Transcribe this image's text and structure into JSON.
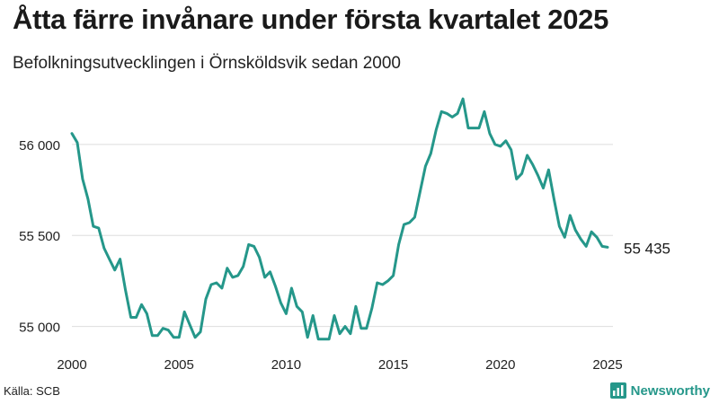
{
  "title": "Åtta färre invånare under första kvartalet 2025",
  "subtitle": "Befolkningsutvecklingen i Örnsköldsvik sedan 2000",
  "source": "Källa: SCB",
  "brand": {
    "name": "Newsworthy",
    "color": "#25978a"
  },
  "chart_data": {
    "type": "line",
    "title": "Åtta färre invånare under första kvartalet 2025",
    "subtitle": "Befolkningsutvecklingen i Örnsköldsvik sedan 2000",
    "xlabel": "",
    "ylabel": "",
    "xlim": [
      2000,
      2025
    ],
    "ylim": [
      54870,
      56300
    ],
    "x_ticks": [
      2000,
      2005,
      2010,
      2015,
      2020,
      2025
    ],
    "x_tick_labels": [
      "2000",
      "2005",
      "2010",
      "2015",
      "2020",
      "2025"
    ],
    "y_ticks": [
      55000,
      55500,
      56000
    ],
    "y_tick_labels": [
      "55 000",
      "55 500",
      "56 000"
    ],
    "grid": "horizontal",
    "legend": "none",
    "line_color": "#25978a",
    "last_value_label": "55 435",
    "series": [
      {
        "x": [
          2000.0,
          2000.25,
          2000.5,
          2000.75,
          2001.0,
          2001.25,
          2001.5,
          2001.75,
          2002.0,
          2002.25,
          2002.5,
          2002.75,
          2003.0,
          2003.25,
          2003.5,
          2003.75,
          2004.0,
          2004.25,
          2004.5,
          2004.75,
          2005.0,
          2005.25,
          2005.5,
          2005.75,
          2006.0,
          2006.25,
          2006.5,
          2006.75,
          2007.0,
          2007.25,
          2007.5,
          2007.75,
          2008.0,
          2008.25,
          2008.5,
          2008.75,
          2009.0,
          2009.25,
          2009.5,
          2009.75,
          2010.0,
          2010.25,
          2010.5,
          2010.75,
          2011.0,
          2011.25,
          2011.5,
          2011.75,
          2012.0,
          2012.25,
          2012.5,
          2012.75,
          2013.0,
          2013.25,
          2013.5,
          2013.75,
          2014.0,
          2014.25,
          2014.5,
          2014.75,
          2015.0,
          2015.25,
          2015.5,
          2015.75,
          2016.0,
          2016.25,
          2016.5,
          2016.75,
          2017.0,
          2017.25,
          2017.5,
          2017.75,
          2018.0,
          2018.25,
          2018.5,
          2018.75,
          2019.0,
          2019.25,
          2019.5,
          2019.75,
          2020.0,
          2020.25,
          2020.5,
          2020.75,
          2021.0,
          2021.25,
          2021.5,
          2021.75,
          2022.0,
          2022.25,
          2022.5,
          2022.75,
          2023.0,
          2023.25,
          2023.5,
          2023.75,
          2024.0,
          2024.25,
          2024.5,
          2024.75,
          2025.0
        ],
        "y": [
          56060,
          56010,
          55810,
          55700,
          55550,
          55540,
          55430,
          55370,
          55310,
          55370,
          55200,
          55050,
          55050,
          55120,
          55070,
          54950,
          54950,
          54990,
          54980,
          54940,
          54940,
          55080,
          55010,
          54940,
          54970,
          55150,
          55230,
          55240,
          55210,
          55320,
          55270,
          55280,
          55330,
          55450,
          55440,
          55380,
          55270,
          55300,
          55220,
          55130,
          55070,
          55210,
          55110,
          55080,
          54940,
          55060,
          54930,
          54930,
          54930,
          55060,
          54960,
          55000,
          54960,
          55110,
          54990,
          54990,
          55100,
          55240,
          55230,
          55250,
          55280,
          55450,
          55560,
          55570,
          55600,
          55740,
          55880,
          55950,
          56080,
          56180,
          56170,
          56150,
          56170,
          56250,
          56090,
          56090,
          56090,
          56180,
          56060,
          56000,
          55990,
          56020,
          55970,
          55810,
          55840,
          55940,
          55890,
          55830,
          55760,
          55860,
          55700,
          55550,
          55490,
          55610,
          55530,
          55480,
          55440,
          55520,
          55490,
          55440,
          55435
        ]
      }
    ]
  }
}
